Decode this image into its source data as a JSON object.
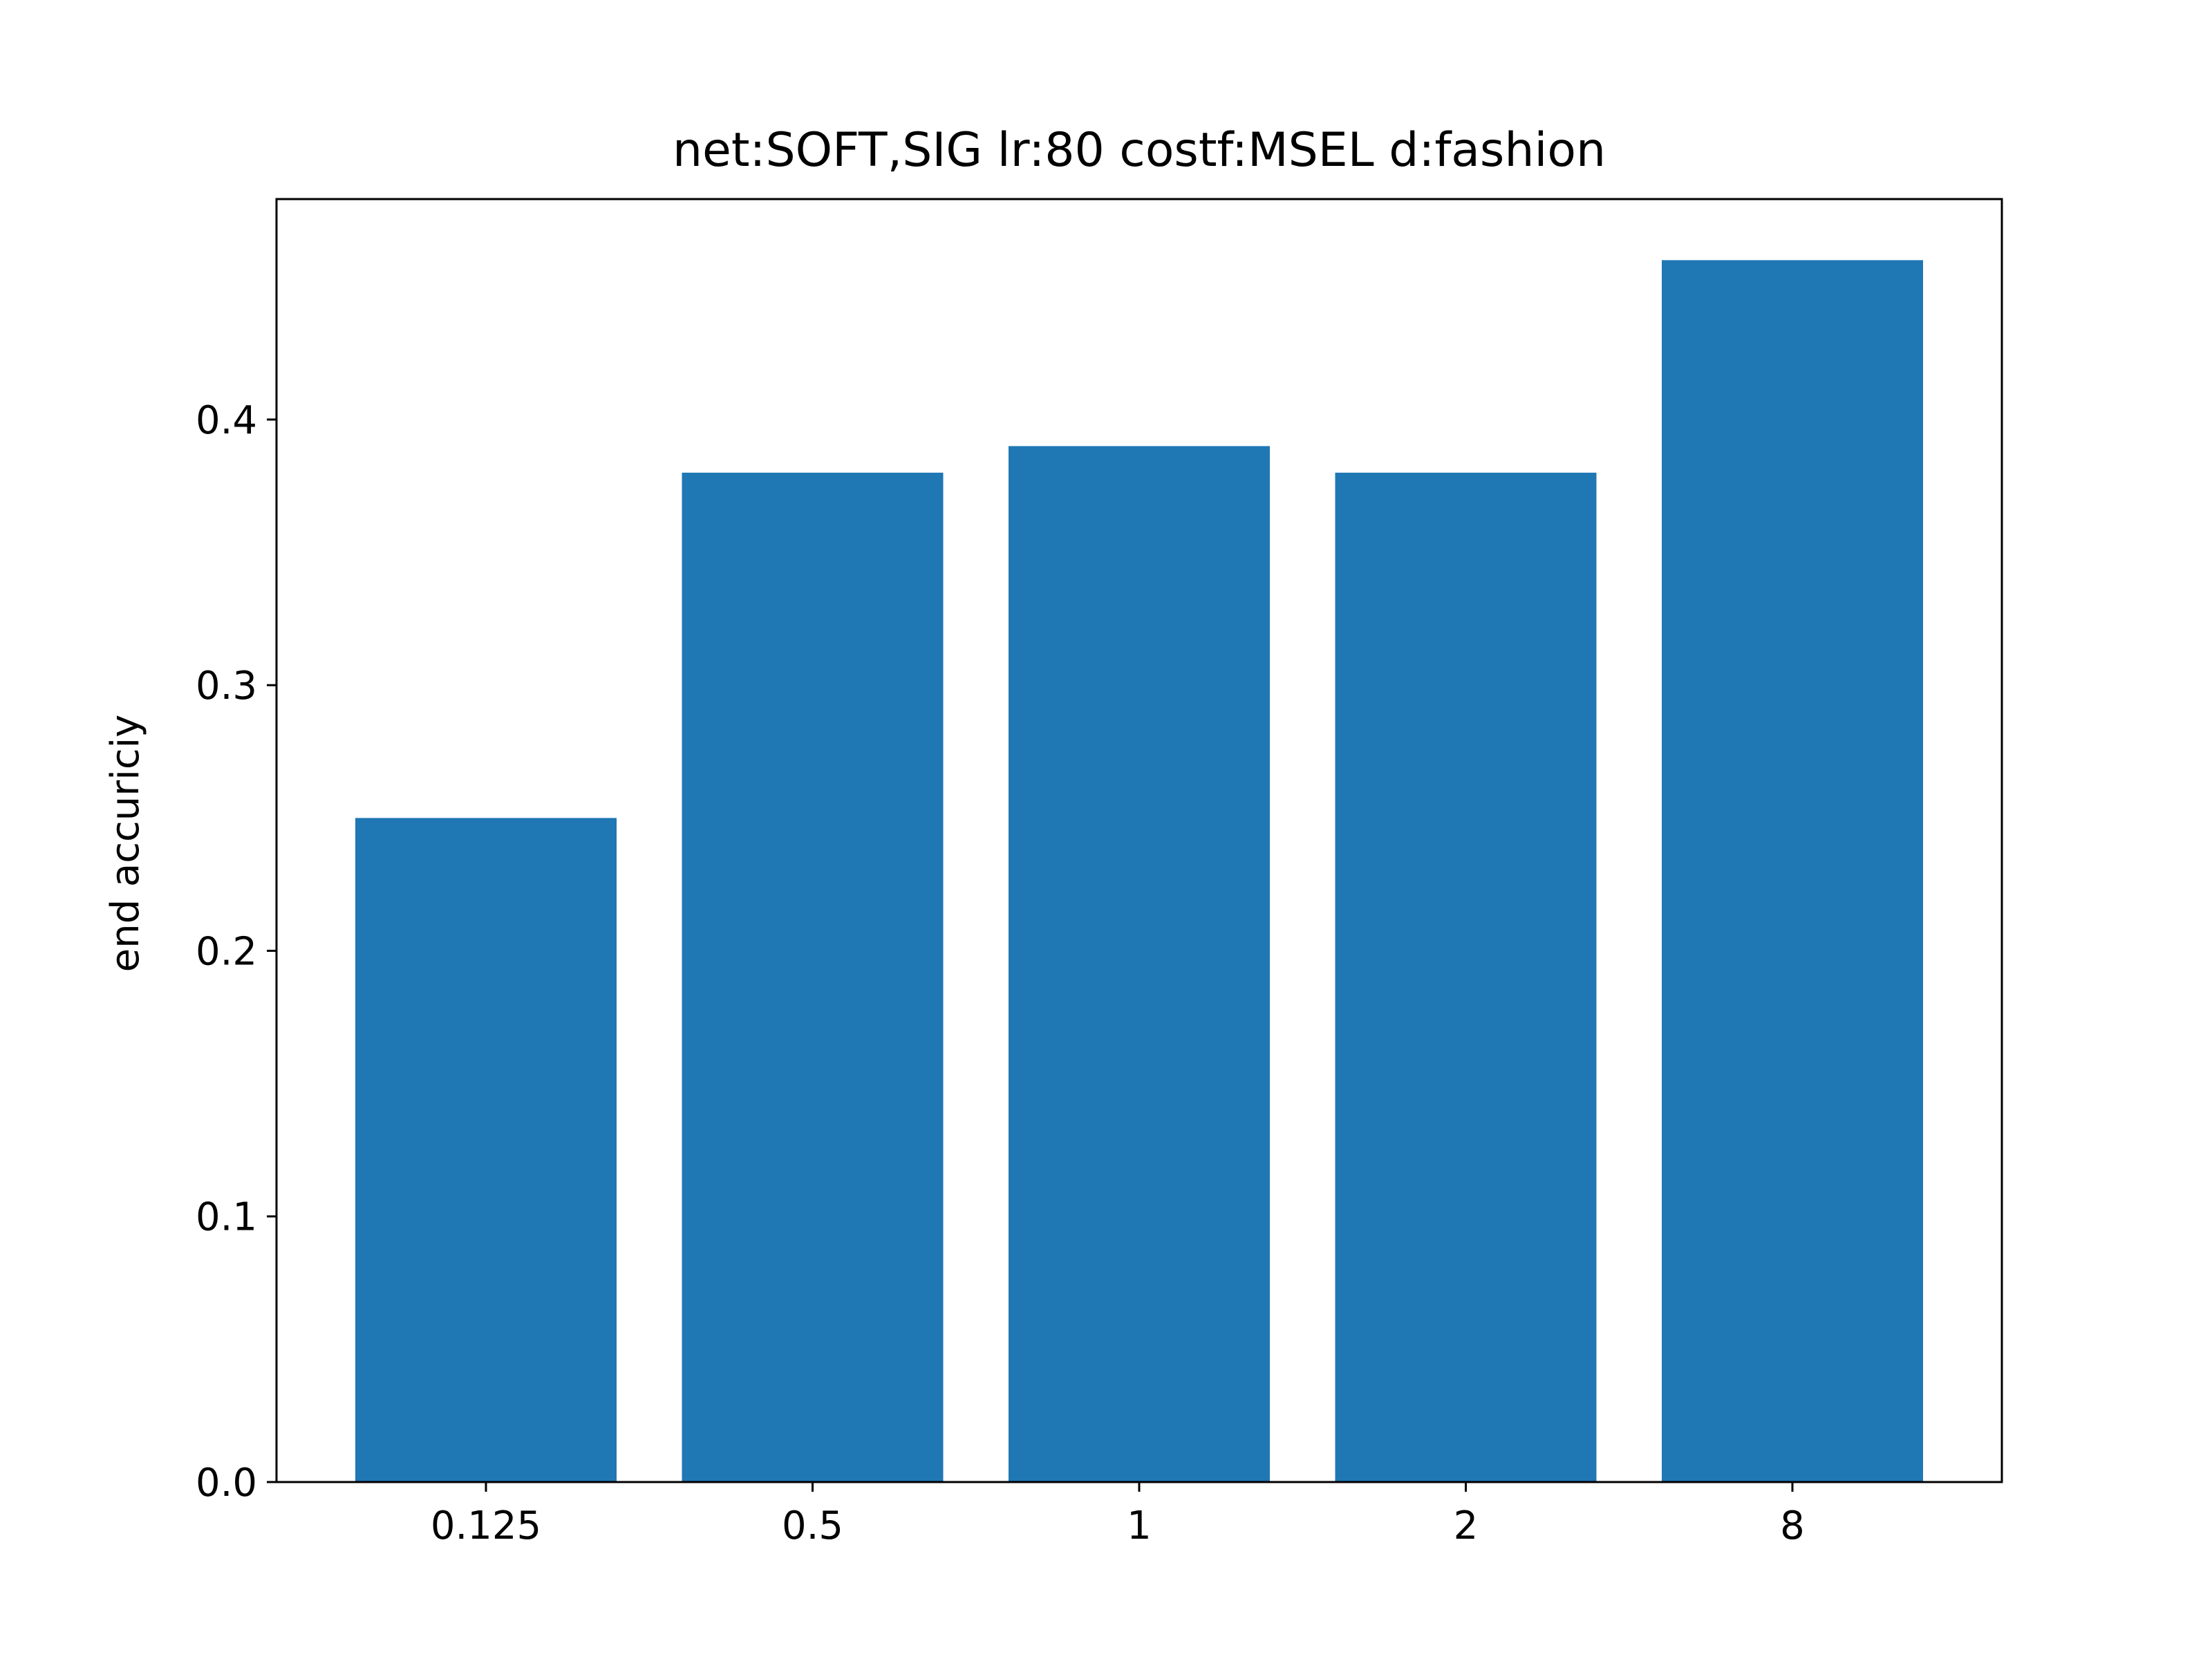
{
  "chart_data": {
    "type": "bar",
    "title": "net:SOFT,SIG lr:80 costf:MSEL d:fashion",
    "xlabel": "",
    "ylabel": "end accuriciy",
    "categories": [
      "0.125",
      "0.5",
      "1",
      "2",
      "8"
    ],
    "values": [
      0.25,
      0.38,
      0.39,
      0.38,
      0.46
    ],
    "ylim": [
      0,
      0.483
    ],
    "yticks": [
      "0.0",
      "0.1",
      "0.2",
      "0.3",
      "0.4"
    ],
    "bar_color": "#1f77b4",
    "grid": false,
    "legend": "none"
  }
}
